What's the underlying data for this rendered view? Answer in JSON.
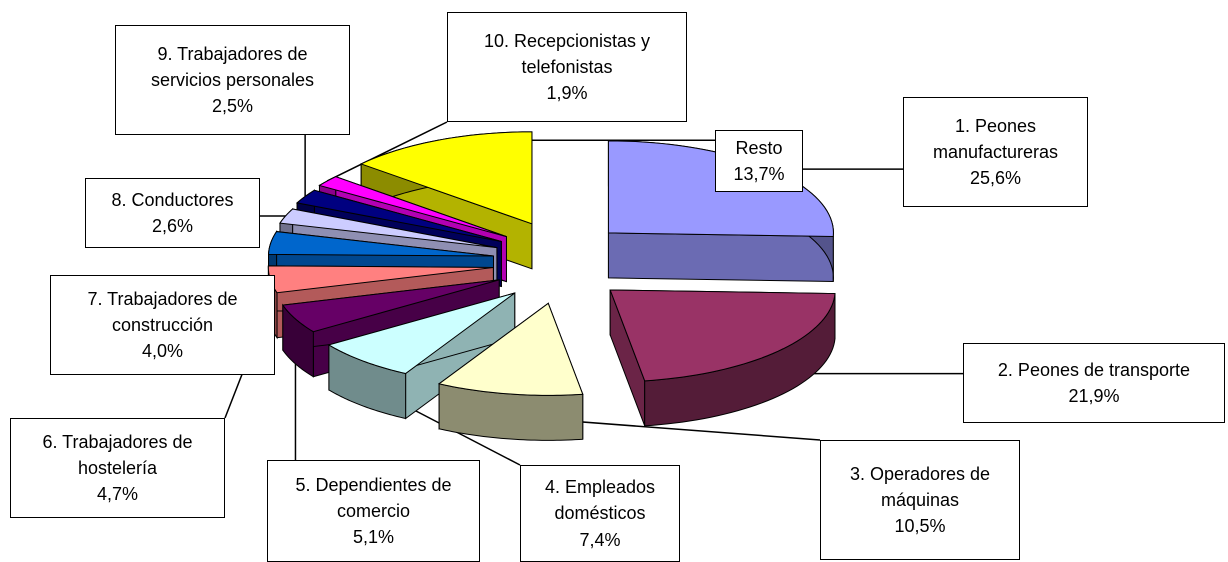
{
  "chart_data": {
    "type": "pie",
    "categories": [
      "1. Peones manufactureras",
      "2. Peones de transporte",
      "3. Operadores de máquinas",
      "4. Empleados domésticos",
      "5. Dependientes de comercio",
      "6. Trabajadores de hostelería",
      "7. Trabajadores de construcción",
      "8. Conductores",
      "9. Trabajadores de servicios personales",
      "10. Recepcionistas y telefonistas",
      "Resto"
    ],
    "values": [
      25.6,
      21.9,
      10.5,
      7.4,
      5.1,
      4.7,
      4.0,
      2.6,
      2.5,
      1.9,
      13.7
    ],
    "value_labels": [
      "25,6%",
      "21,9%",
      "10,5%",
      "7,4%",
      "5,1%",
      "4,7%",
      "4,0%",
      "2,6%",
      "2,5%",
      "1,9%",
      "13,7%"
    ],
    "colors": [
      "#9999ff",
      "#993366",
      "#ffffcc",
      "#ccffff",
      "#660066",
      "#ff8080",
      "#0066cc",
      "#ccccff",
      "#000080",
      "#ff00ff",
      "#ffff00"
    ]
  }
}
